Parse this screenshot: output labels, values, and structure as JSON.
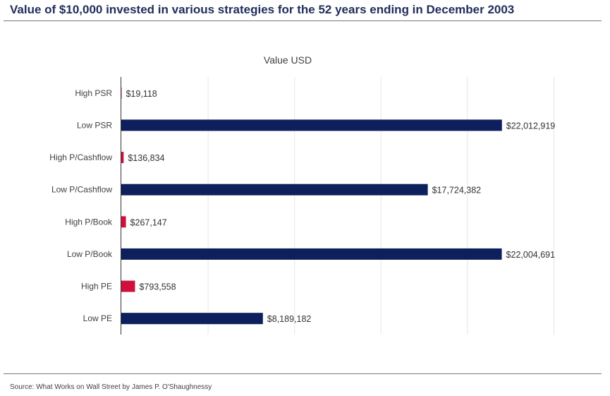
{
  "header": {
    "title": "Value of $10,000 invested in various strategies for the 52 years ending in December 2003"
  },
  "footer": {
    "source": "Source: What Works on Wall Street by James P. O'Shaughnessy"
  },
  "chart_data": {
    "type": "bar",
    "orientation": "horizontal",
    "title": "Value USD",
    "categories": [
      "High PSR",
      "Low PSR",
      "High P/Cashflow",
      "Low P/Cashflow",
      "High P/Book",
      "Low P/Book",
      "High PE",
      "Low PE"
    ],
    "values": [
      19118,
      22012919,
      136834,
      17724382,
      267147,
      22004691,
      793558,
      8189182
    ],
    "value_labels": [
      "$19,118",
      "$22,012,919",
      "$136,834",
      "$17,724,382",
      "$267,147",
      "$22,004,691",
      "$793,558",
      "$8,189,182"
    ],
    "bar_colors": [
      "#d0103a",
      "#0d1f5c",
      "#d0103a",
      "#0d1f5c",
      "#d0103a",
      "#0d1f5c",
      "#d0103a",
      "#0d1f5c"
    ],
    "xlim": [
      0,
      25000000
    ],
    "grid": true,
    "legend": "none"
  }
}
